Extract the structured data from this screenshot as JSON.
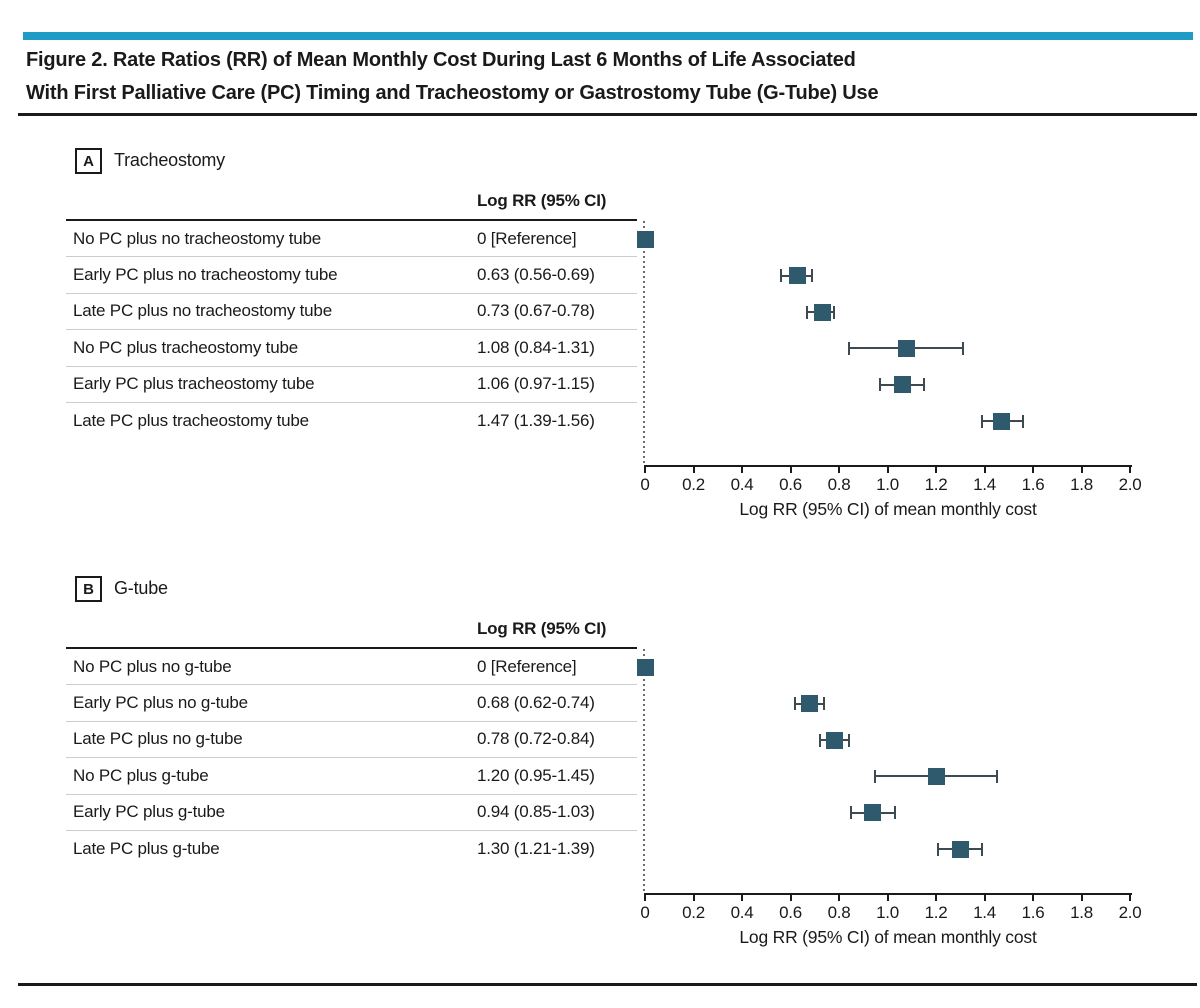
{
  "accent_color": "#1e9cc5",
  "marker_color": "#2f5a6d",
  "header": {
    "title_line1": "Figure 2. Rate Ratios (RR) of Mean Monthly Cost During Last 6 Months of Life Associated",
    "title_line2": "With First Palliative Care (PC) Timing and Tracheostomy or Gastrostomy Tube (G-Tube) Use"
  },
  "chart_data": [
    {
      "type": "forest",
      "panel_label": "A",
      "panel_title": "Tracheostomy",
      "column_header": "Log RR (95% CI)",
      "xlabel": "Log RR (95% CI) of mean monthly cost",
      "xlim": [
        0,
        2.0
      ],
      "xticks": [
        "0",
        "0.2",
        "0.4",
        "0.6",
        "0.8",
        "1.0",
        "1.2",
        "1.4",
        "1.6",
        "1.8",
        "2.0"
      ],
      "rows": [
        {
          "label": "No PC plus no tracheostomy tube",
          "value_text": "0 [Reference]",
          "est": 0,
          "lo": 0,
          "hi": 0,
          "reference": true
        },
        {
          "label": "Early PC plus no tracheostomy tube",
          "value_text": "0.63 (0.56-0.69)",
          "est": 0.63,
          "lo": 0.56,
          "hi": 0.69,
          "reference": false
        },
        {
          "label": "Late PC plus no tracheostomy tube",
          "value_text": "0.73 (0.67-0.78)",
          "est": 0.73,
          "lo": 0.67,
          "hi": 0.78,
          "reference": false
        },
        {
          "label": "No PC plus tracheostomy tube",
          "value_text": "1.08 (0.84-1.31)",
          "est": 1.08,
          "lo": 0.84,
          "hi": 1.31,
          "reference": false
        },
        {
          "label": "Early PC plus tracheostomy tube",
          "value_text": "1.06 (0.97-1.15)",
          "est": 1.06,
          "lo": 0.97,
          "hi": 1.15,
          "reference": false
        },
        {
          "label": "Late PC plus tracheostomy tube",
          "value_text": "1.47 (1.39-1.56)",
          "est": 1.47,
          "lo": 1.39,
          "hi": 1.56,
          "reference": false
        }
      ]
    },
    {
      "type": "forest",
      "panel_label": "B",
      "panel_title": "G-tube",
      "column_header": "Log RR (95% CI)",
      "xlabel": "Log RR (95% CI) of mean monthly cost",
      "xlim": [
        0,
        2.0
      ],
      "xticks": [
        "0",
        "0.2",
        "0.4",
        "0.6",
        "0.8",
        "1.0",
        "1.2",
        "1.4",
        "1.6",
        "1.8",
        "2.0"
      ],
      "rows": [
        {
          "label": "No PC plus no g-tube",
          "value_text": "0 [Reference]",
          "est": 0,
          "lo": 0,
          "hi": 0,
          "reference": true
        },
        {
          "label": "Early PC plus no g-tube",
          "value_text": "0.68 (0.62-0.74)",
          "est": 0.68,
          "lo": 0.62,
          "hi": 0.74,
          "reference": false
        },
        {
          "label": "Late PC plus no g-tube",
          "value_text": "0.78 (0.72-0.84)",
          "est": 0.78,
          "lo": 0.72,
          "hi": 0.84,
          "reference": false
        },
        {
          "label": "No PC plus g-tube",
          "value_text": "1.20 (0.95-1.45)",
          "est": 1.2,
          "lo": 0.95,
          "hi": 1.45,
          "reference": false
        },
        {
          "label": "Early PC plus g-tube",
          "value_text": "0.94 (0.85-1.03)",
          "est": 0.94,
          "lo": 0.85,
          "hi": 1.03,
          "reference": false
        },
        {
          "label": "Late PC plus g-tube",
          "value_text": "1.30 (1.21-1.39)",
          "est": 1.3,
          "lo": 1.21,
          "hi": 1.39,
          "reference": false
        }
      ]
    }
  ]
}
